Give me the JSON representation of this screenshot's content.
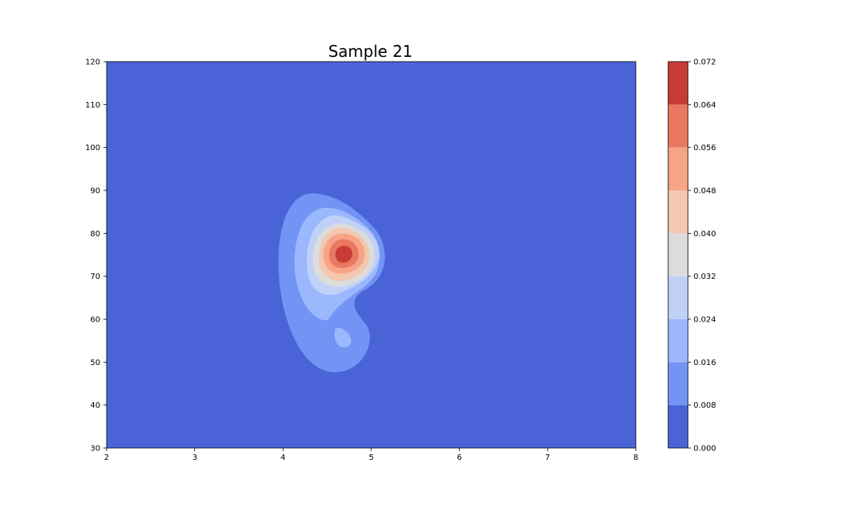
{
  "chart_data": {
    "type": "contour",
    "title": "Sample 21",
    "xlabel": "",
    "ylabel": "",
    "xlim": [
      2,
      8
    ],
    "ylim": [
      30,
      120
    ],
    "x_ticks": [
      "2",
      "3",
      "4",
      "5",
      "6",
      "7",
      "8"
    ],
    "y_ticks": [
      "30",
      "40",
      "50",
      "60",
      "70",
      "80",
      "90",
      "100",
      "110",
      "120"
    ],
    "colorbar": {
      "levels": [
        0.0,
        0.008,
        0.016,
        0.024,
        0.032,
        0.04,
        0.048,
        0.056,
        0.064,
        0.072
      ],
      "tick_labels": [
        "0.000",
        "0.008",
        "0.016",
        "0.024",
        "0.032",
        "0.040",
        "0.048",
        "0.056",
        "0.064",
        "0.072"
      ],
      "colors": [
        "#4a64d8",
        "#7394f4",
        "#9bb7fe",
        "#c0d1f7",
        "#dcdcdc",
        "#f3c7b0",
        "#f6a485",
        "#e8785f",
        "#c93b37"
      ]
    },
    "peaks": [
      {
        "x": 4.68,
        "y": 75.0,
        "value": 0.07
      },
      {
        "x": 4.65,
        "y": 55.5,
        "value": 0.018
      }
    ],
    "grid": false,
    "legend": "colorbar-right"
  }
}
